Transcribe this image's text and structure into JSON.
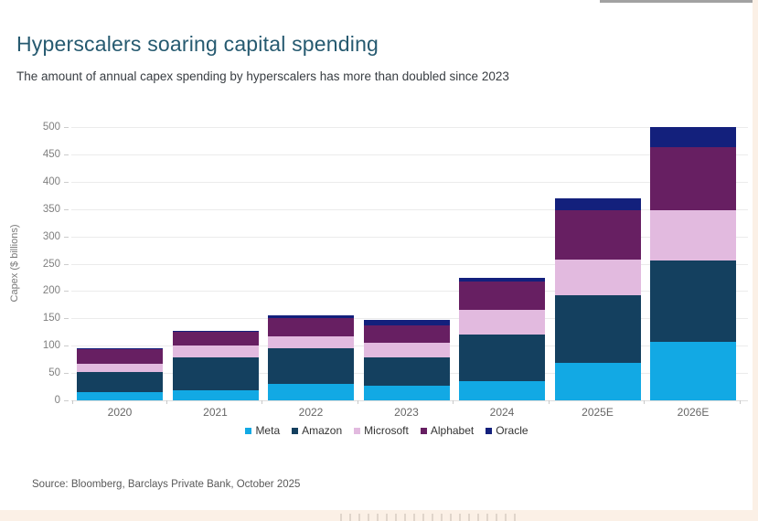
{
  "header": {
    "title": "Hyperscalers soaring capital spending",
    "subtitle": "The amount of annual capex spending by hyperscalers has more than doubled since 2023"
  },
  "chart_data": {
    "type": "bar",
    "stacked": true,
    "categories": [
      "2020",
      "2021",
      "2022",
      "2023",
      "2024",
      "2025E",
      "2026E"
    ],
    "series": [
      {
        "name": "Meta",
        "color": "#12a9e4",
        "values": [
          15,
          18,
          30,
          27,
          36,
          68,
          107
        ]
      },
      {
        "name": "Amazon",
        "color": "#14405f",
        "values": [
          37,
          61,
          65,
          52,
          84,
          125,
          149
        ]
      },
      {
        "name": "Microsoft",
        "color": "#e2badf",
        "values": [
          15,
          21,
          22,
          27,
          45,
          65,
          92
        ]
      },
      {
        "name": "Alphabet",
        "color": "#671f62",
        "values": [
          26,
          25,
          34,
          32,
          52,
          90,
          116
        ]
      },
      {
        "name": "Oracle",
        "color": "#13207c",
        "values": [
          2,
          2,
          4,
          10,
          8,
          21,
          36
        ]
      }
    ],
    "totals": [
      95,
      127,
      155,
      148,
      225,
      369,
      500
    ],
    "xlabel": "",
    "ylabel": "Capex ($ billions)",
    "ylim": [
      0,
      500
    ],
    "yticks": [
      0,
      50,
      100,
      150,
      200,
      250,
      300,
      350,
      400,
      450,
      500
    ],
    "grid": true,
    "legend_position": "bottom"
  },
  "footer": {
    "source": "Source: Bloomberg, Barclays Private Bank, October 2025"
  },
  "style": {
    "accent_title_color": "#265a70",
    "band_color": "#fbf0e6"
  }
}
